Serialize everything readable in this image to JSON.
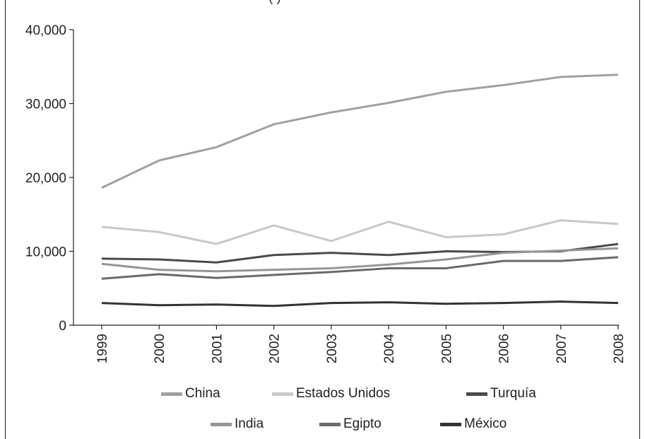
{
  "chart_data": {
    "type": "line",
    "title": "",
    "xlabel": "",
    "ylabel": "",
    "ylim": [
      0,
      40000
    ],
    "yticks": [
      "0",
      "10,000",
      "20,000",
      "30,000",
      "40,000"
    ],
    "categories": [
      "1999",
      "2000",
      "2001",
      "2002",
      "2003",
      "2004",
      "2005",
      "2006",
      "2007",
      "2008"
    ],
    "grid": false,
    "legend_position": "bottom",
    "series": [
      {
        "name": "China",
        "color": "#a0a0a0",
        "values": [
          18600,
          22300,
          24100,
          27200,
          28800,
          30100,
          31600,
          32500,
          33600,
          33900
        ]
      },
      {
        "name": "Estados Unidos",
        "color": "#c8c8c8",
        "values": [
          13300,
          12600,
          11000,
          13500,
          11400,
          14000,
          11900,
          12300,
          14200,
          13700
        ]
      },
      {
        "name": "Turquía",
        "color": "#4a4a4a",
        "values": [
          9000,
          8900,
          8500,
          9500,
          9800,
          9500,
          10000,
          9900,
          10000,
          11000
        ]
      },
      {
        "name": "India",
        "color": "#969696",
        "values": [
          8300,
          7500,
          7300,
          7500,
          7700,
          8200,
          8900,
          9800,
          10100,
          10400
        ]
      },
      {
        "name": "Egipto",
        "color": "#6a6a6a",
        "values": [
          6300,
          6900,
          6400,
          6800,
          7200,
          7700,
          7700,
          8700,
          8700,
          9200
        ]
      },
      {
        "name": "México",
        "color": "#333333",
        "values": [
          3000,
          2700,
          2800,
          2600,
          3000,
          3100,
          2900,
          3000,
          3200,
          3000
        ]
      }
    ]
  },
  "cut_off_text": "(                    )"
}
